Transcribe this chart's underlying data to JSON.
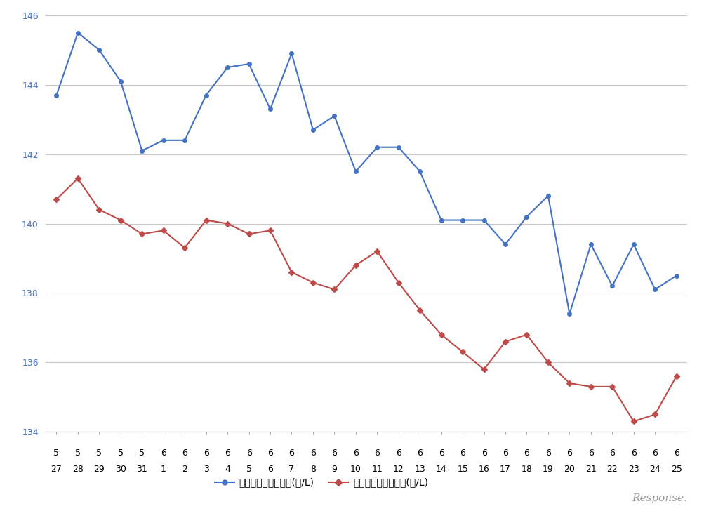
{
  "x_labels_row1": [
    "5",
    "5",
    "5",
    "5",
    "5",
    "6",
    "6",
    "6",
    "6",
    "6",
    "6",
    "6",
    "6",
    "6",
    "6",
    "6",
    "6",
    "6",
    "6",
    "6",
    "6",
    "6",
    "6",
    "6",
    "6",
    "6",
    "6",
    "6",
    "6",
    "6"
  ],
  "x_labels_row2": [
    "27",
    "28",
    "29",
    "30",
    "31",
    "1",
    "2",
    "3",
    "4",
    "5",
    "6",
    "7",
    "8",
    "9",
    "10",
    "11",
    "12",
    "13",
    "14",
    "15",
    "16",
    "17",
    "18",
    "19",
    "20",
    "21",
    "22",
    "23",
    "24",
    "25"
  ],
  "blue_values": [
    143.7,
    145.5,
    145.0,
    144.1,
    142.1,
    142.4,
    142.4,
    143.7,
    144.5,
    144.6,
    143.3,
    144.9,
    142.7,
    143.1,
    141.5,
    142.2,
    142.2,
    141.5,
    140.1,
    140.1,
    140.1,
    139.4,
    140.2,
    140.8,
    137.4,
    139.4,
    138.2,
    139.4,
    138.1,
    138.5
  ],
  "red_values": [
    140.7,
    141.3,
    140.4,
    140.1,
    139.7,
    139.8,
    139.3,
    140.1,
    140.0,
    139.7,
    139.8,
    138.6,
    138.3,
    138.1,
    138.8,
    139.2,
    138.3,
    137.5,
    136.8,
    136.3,
    135.8,
    136.6,
    136.8,
    136.0,
    135.4,
    135.3,
    135.3,
    134.3,
    134.5,
    135.6
  ],
  "ylim": [
    134,
    146
  ],
  "yticks": [
    134,
    136,
    138,
    140,
    142,
    144,
    146
  ],
  "blue_color": "#4472C4",
  "red_color": "#BE4B48",
  "blue_label": "レギュラー看板価格(円/L)",
  "red_label": "レギュラー実売価格(円/L)",
  "background_color": "#ffffff",
  "grid_color": "#c8c8c8",
  "axis_label_color": "#4472C4",
  "tick_label_color": "#000000",
  "font_size_tick": 9,
  "font_size_legend": 10,
  "watermark": "Response.",
  "watermark_color": "#999999"
}
